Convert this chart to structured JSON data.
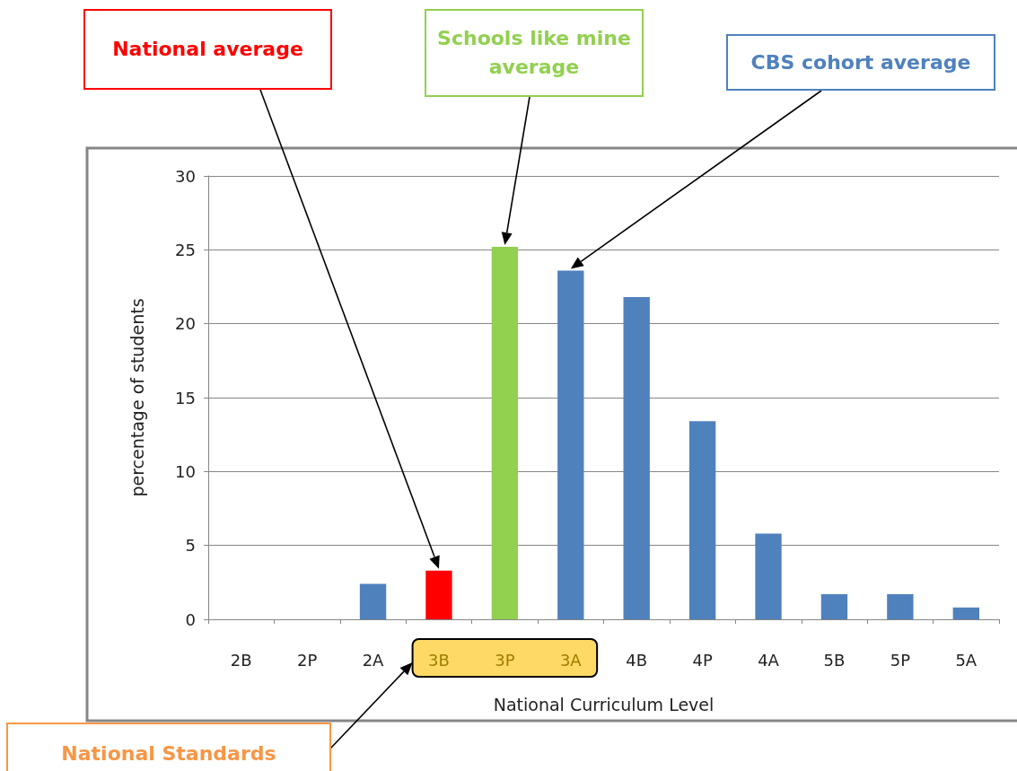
{
  "chart_data": {
    "type": "bar",
    "xlabel": "National Curriculum Level",
    "ylabel": "percentage of students",
    "categories": [
      "2B",
      "2P",
      "2A",
      "3B",
      "3P",
      "3A",
      "4B",
      "4P",
      "4A",
      "5B",
      "5P",
      "5A"
    ],
    "values": [
      0,
      0,
      2.4,
      3.3,
      25.2,
      23.6,
      21.8,
      13.4,
      5.8,
      1.7,
      1.7,
      0.8
    ],
    "colors": [
      "#4f81bd",
      "#4f81bd",
      "#4f81bd",
      "#ff0000",
      "#92d050",
      "#4f81bd",
      "#4f81bd",
      "#4f81bd",
      "#4f81bd",
      "#4f81bd",
      "#4f81bd",
      "#4f81bd"
    ],
    "ylim": [
      0,
      30
    ],
    "yticks": [
      0,
      5,
      10,
      15,
      20,
      25,
      30
    ],
    "grid": "y",
    "annotations": [
      "National average",
      "Schools like mine average",
      "CBS cohort average",
      "National Standards"
    ]
  }
}
